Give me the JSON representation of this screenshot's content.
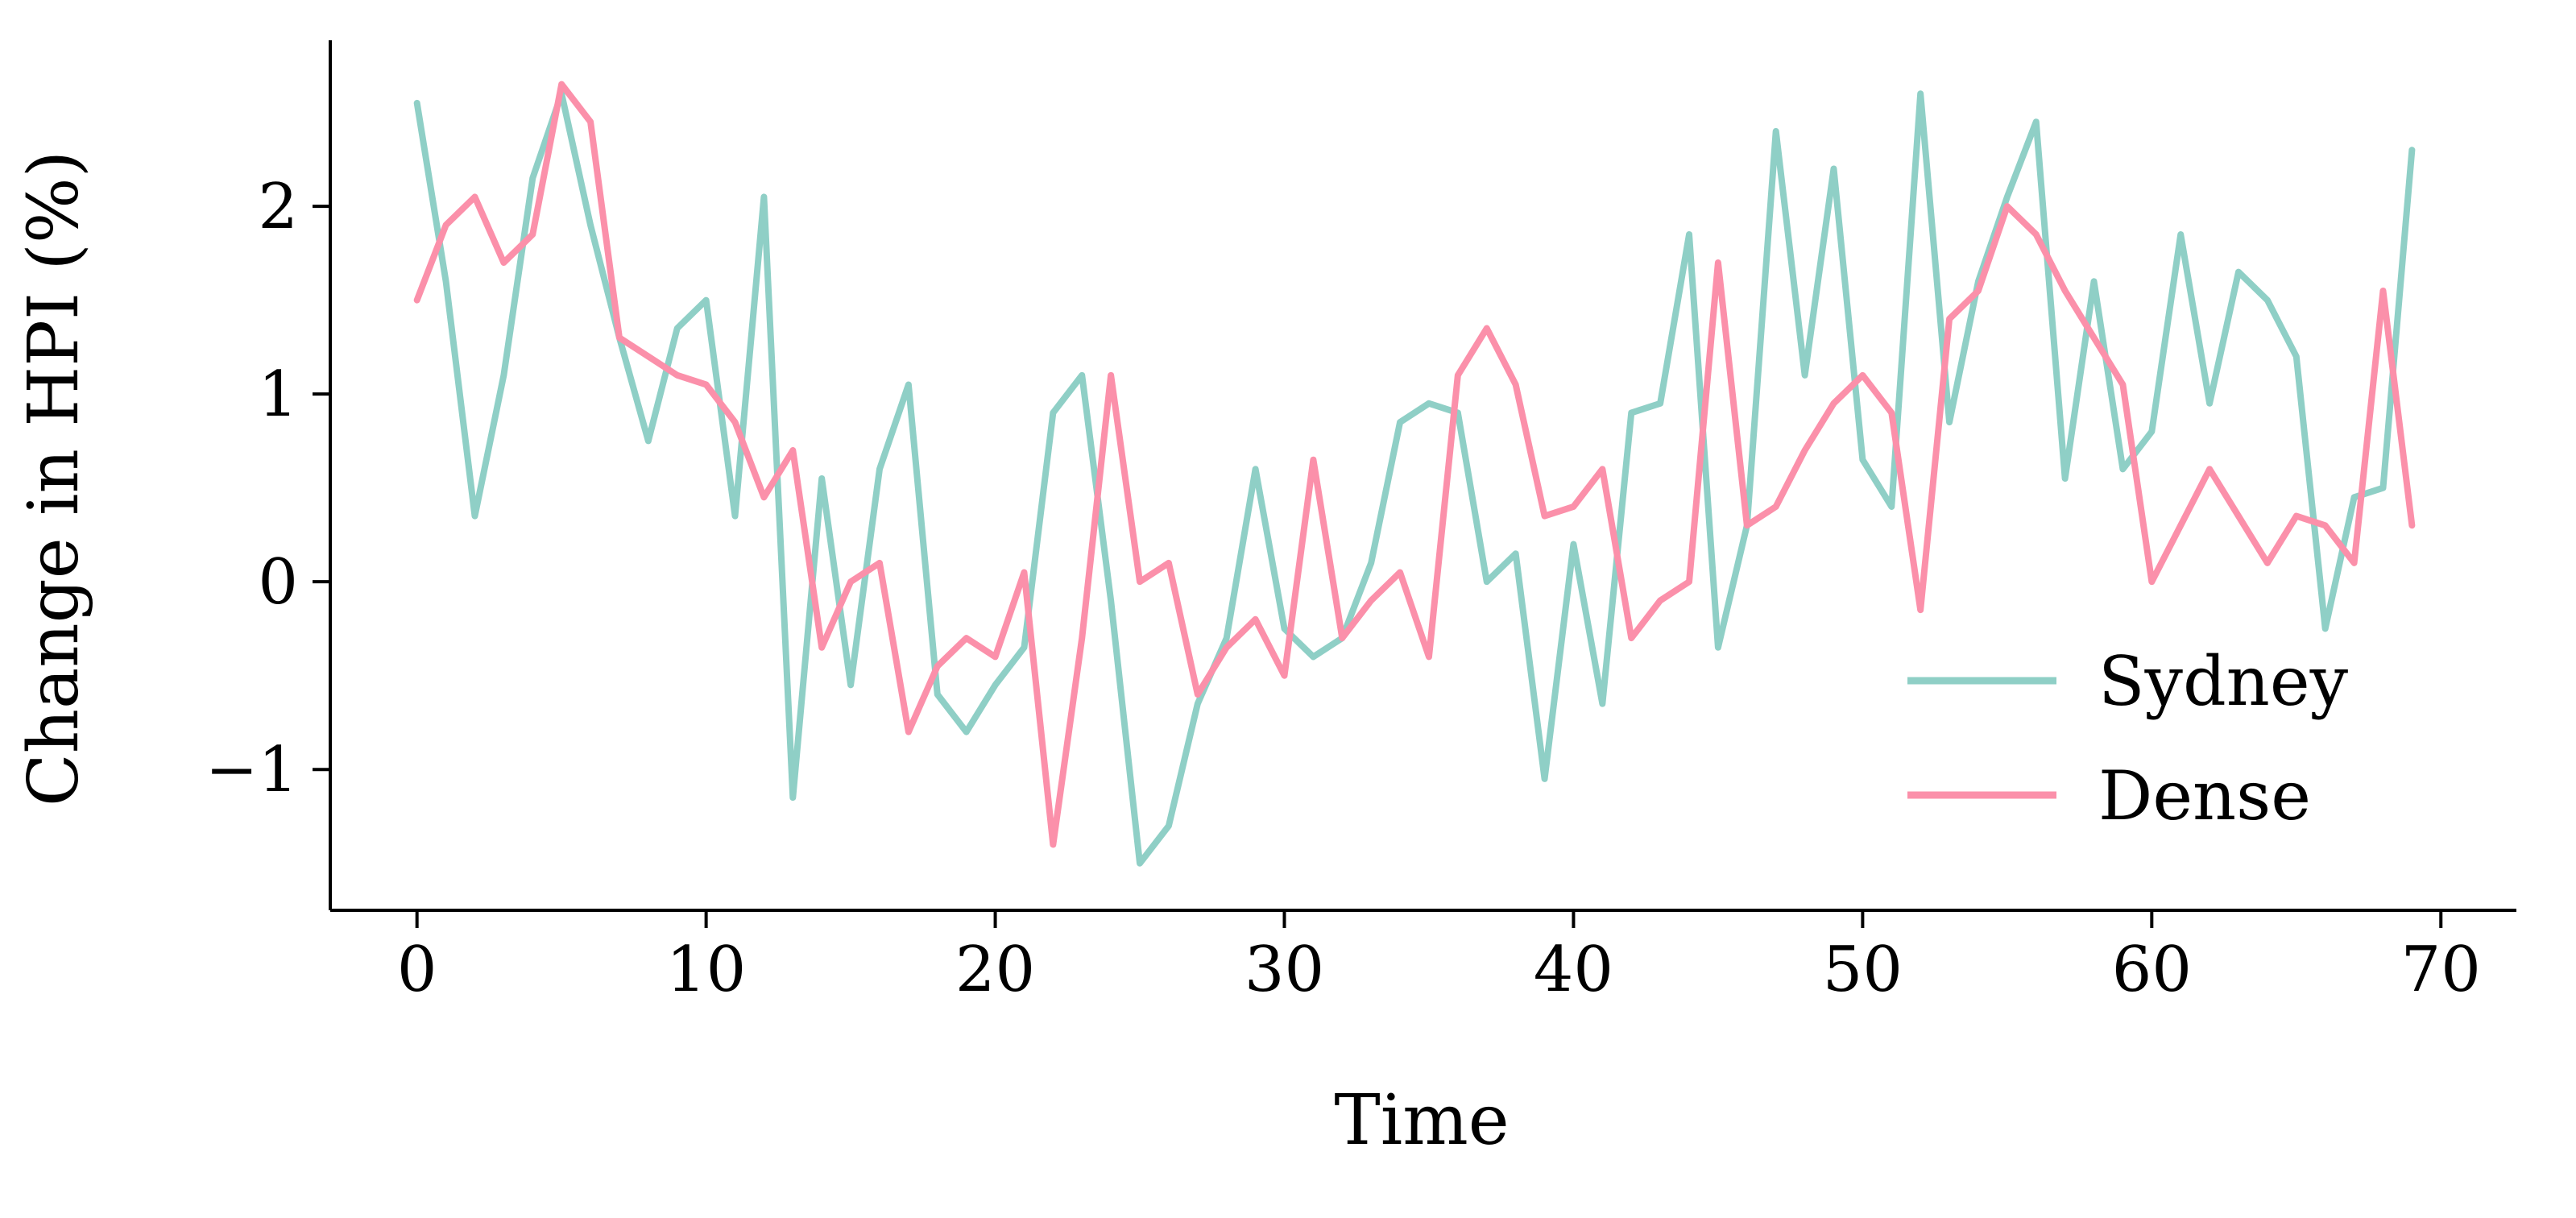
{
  "figure": {
    "background": "#ffffff",
    "axis_color": "#000000"
  },
  "chart_data": {
    "type": "line",
    "title": "",
    "xlabel": "Time",
    "ylabel": "Change in HPI (%)",
    "xlim": [
      -3,
      72.5
    ],
    "ylim": [
      -1.75,
      2.85
    ],
    "xticks": [
      0,
      10,
      20,
      30,
      40,
      50,
      60,
      70
    ],
    "yticks": [
      -1,
      0,
      1,
      2
    ],
    "grid": false,
    "legend_position": "right-center",
    "x": [
      0,
      1,
      2,
      3,
      4,
      5,
      6,
      7,
      8,
      9,
      10,
      11,
      12,
      13,
      14,
      15,
      16,
      17,
      18,
      19,
      20,
      21,
      22,
      23,
      24,
      25,
      26,
      27,
      28,
      29,
      30,
      31,
      32,
      33,
      34,
      35,
      36,
      37,
      38,
      39,
      40,
      41,
      42,
      43,
      44,
      45,
      46,
      47,
      48,
      49,
      50,
      51,
      52,
      53,
      54,
      55,
      56,
      57,
      58,
      59,
      60,
      61,
      62,
      63,
      64,
      65,
      66,
      67,
      68,
      69
    ],
    "series": [
      {
        "name": "Sydney",
        "color": "#8fcfc6",
        "values": [
          2.55,
          1.6,
          0.35,
          1.1,
          2.15,
          2.6,
          1.9,
          1.3,
          0.75,
          1.35,
          1.5,
          0.35,
          2.05,
          -1.15,
          0.55,
          -0.55,
          0.6,
          1.05,
          -0.6,
          -0.8,
          -0.55,
          -0.35,
          0.9,
          1.1,
          -0.1,
          -1.5,
          -1.3,
          -0.65,
          -0.3,
          0.6,
          -0.25,
          -0.4,
          -0.3,
          0.1,
          0.85,
          0.95,
          0.9,
          0.0,
          0.15,
          -1.05,
          0.2,
          -0.65,
          0.9,
          0.95,
          1.85,
          -0.35,
          0.3,
          2.4,
          1.1,
          2.2,
          0.65,
          0.4,
          2.6,
          0.85,
          1.6,
          2.05,
          2.45,
          0.55,
          1.6,
          0.6,
          0.8,
          1.85,
          0.95,
          1.65,
          1.5,
          1.2,
          -0.25,
          0.45,
          0.5,
          2.3
        ]
      },
      {
        "name": "Dense",
        "color": "#fb90aa",
        "values": [
          1.5,
          1.9,
          2.05,
          1.7,
          1.85,
          2.65,
          2.45,
          1.3,
          1.2,
          1.1,
          1.05,
          0.85,
          0.45,
          0.7,
          -0.35,
          0.0,
          0.1,
          -0.8,
          -0.45,
          -0.3,
          -0.4,
          0.05,
          -1.4,
          -0.3,
          1.1,
          0.0,
          0.1,
          -0.6,
          -0.35,
          -0.2,
          -0.5,
          0.65,
          -0.3,
          -0.1,
          0.05,
          -0.4,
          1.1,
          1.35,
          1.05,
          0.35,
          0.4,
          0.6,
          -0.3,
          -0.1,
          0.0,
          1.7,
          0.3,
          0.4,
          0.7,
          0.95,
          1.1,
          0.9,
          -0.15,
          1.4,
          1.55,
          2.0,
          1.85,
          1.55,
          1.3,
          1.05,
          0.0,
          0.3,
          0.6,
          0.35,
          0.1,
          0.35,
          0.3,
          0.1,
          1.55,
          0.3
        ]
      }
    ]
  }
}
